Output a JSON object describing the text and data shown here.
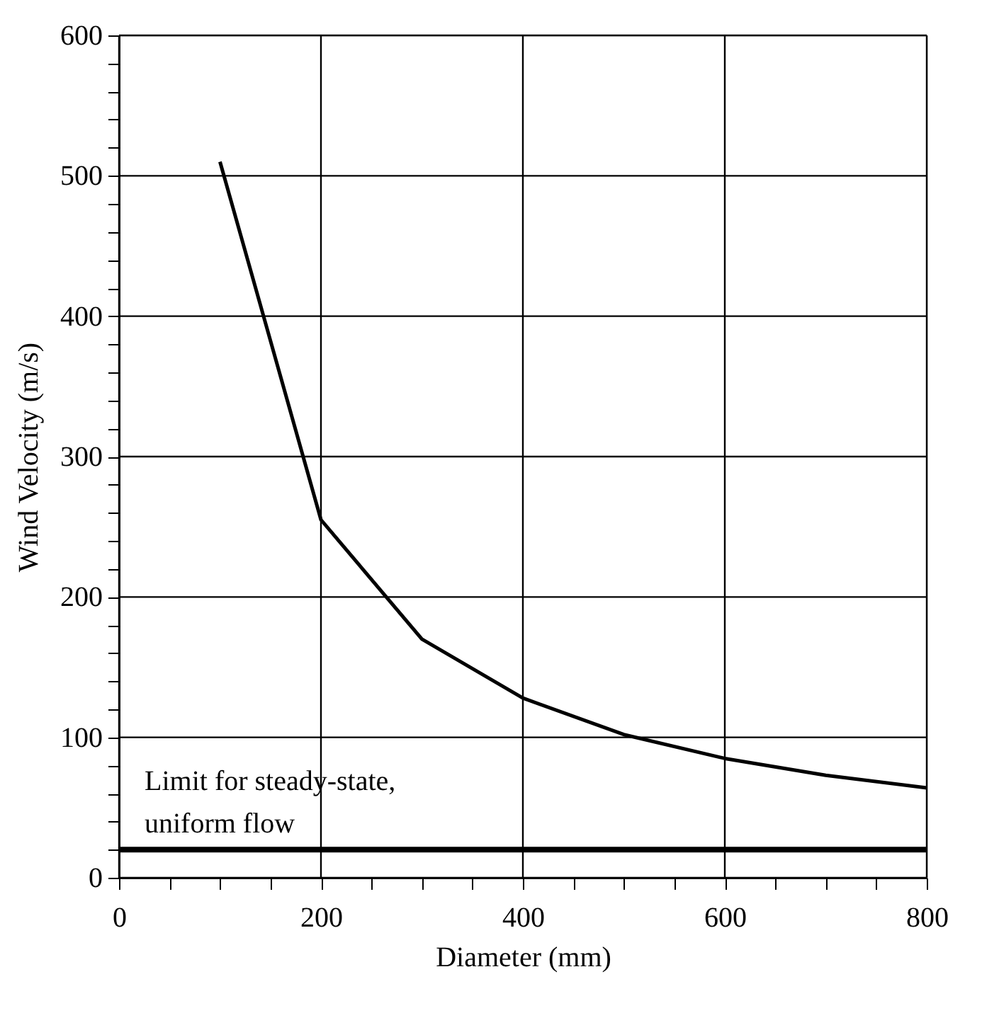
{
  "chart_data": {
    "type": "line",
    "xlabel": "Diameter (mm)",
    "ylabel": "Wind Velocity (m/s)",
    "x": [
      100,
      200,
      300,
      400,
      500,
      600,
      700,
      800
    ],
    "series": [
      {
        "color": "#000000",
        "values": [
          510,
          255,
          170,
          128,
          102,
          85,
          73,
          64
        ]
      }
    ],
    "xlim": [
      0,
      800
    ],
    "ylim": [
      0,
      600
    ],
    "xticks": [
      0,
      {
        "value": 50,
        "label": null
      },
      {
        "value": 100,
        "label": null
      },
      {
        "value": 150,
        "label": null
      },
      200,
      {
        "value": 250,
        "label": null
      },
      {
        "value": 300,
        "label": null
      },
      {
        "value": 350,
        "label": null
      },
      400,
      {
        "value": 450,
        "label": null
      },
      {
        "value": 500,
        "label": null
      },
      {
        "value": 550,
        "label": null
      },
      600,
      {
        "value": 650,
        "label": null
      },
      {
        "value": 700,
        "label": null
      },
      {
        "value": 750,
        "label": null
      },
      800
    ],
    "yticks": [
      0,
      {
        "value": 20,
        "label": null
      },
      {
        "value": 40,
        "label": null
      },
      {
        "value": 60,
        "label": null
      },
      {
        "value": 80,
        "label": null
      },
      100,
      {
        "value": 120,
        "label": null
      },
      {
        "value": 140,
        "label": null
      },
      {
        "value": 160,
        "label": null
      },
      {
        "value": 180,
        "label": null
      },
      200,
      {
        "value": 220,
        "label": null
      },
      {
        "value": 240,
        "label": null
      },
      {
        "value": 260,
        "label": null
      },
      {
        "value": 280,
        "label": null
      },
      300,
      {
        "value": 320,
        "label": null
      },
      {
        "value": 340,
        "label": null
      },
      {
        "value": 360,
        "label": null
      },
      {
        "value": 380,
        "label": null
      },
      400,
      {
        "value": 420,
        "label": null
      },
      {
        "value": 440,
        "label": null
      },
      {
        "value": 460,
        "label": null
      },
      {
        "value": 480,
        "label": null
      },
      500,
      {
        "value": 520,
        "label": null
      },
      {
        "value": 540,
        "label": null
      },
      {
        "value": 560,
        "label": null
      },
      {
        "value": 580,
        "label": null
      },
      600
    ],
    "ref_lines": [
      {
        "axis": "y",
        "value": 20,
        "label": "Limit for steady-state, uniform flow",
        "color": "#000000"
      }
    ],
    "grid": true,
    "marker": "none",
    "line_style": "solid"
  }
}
